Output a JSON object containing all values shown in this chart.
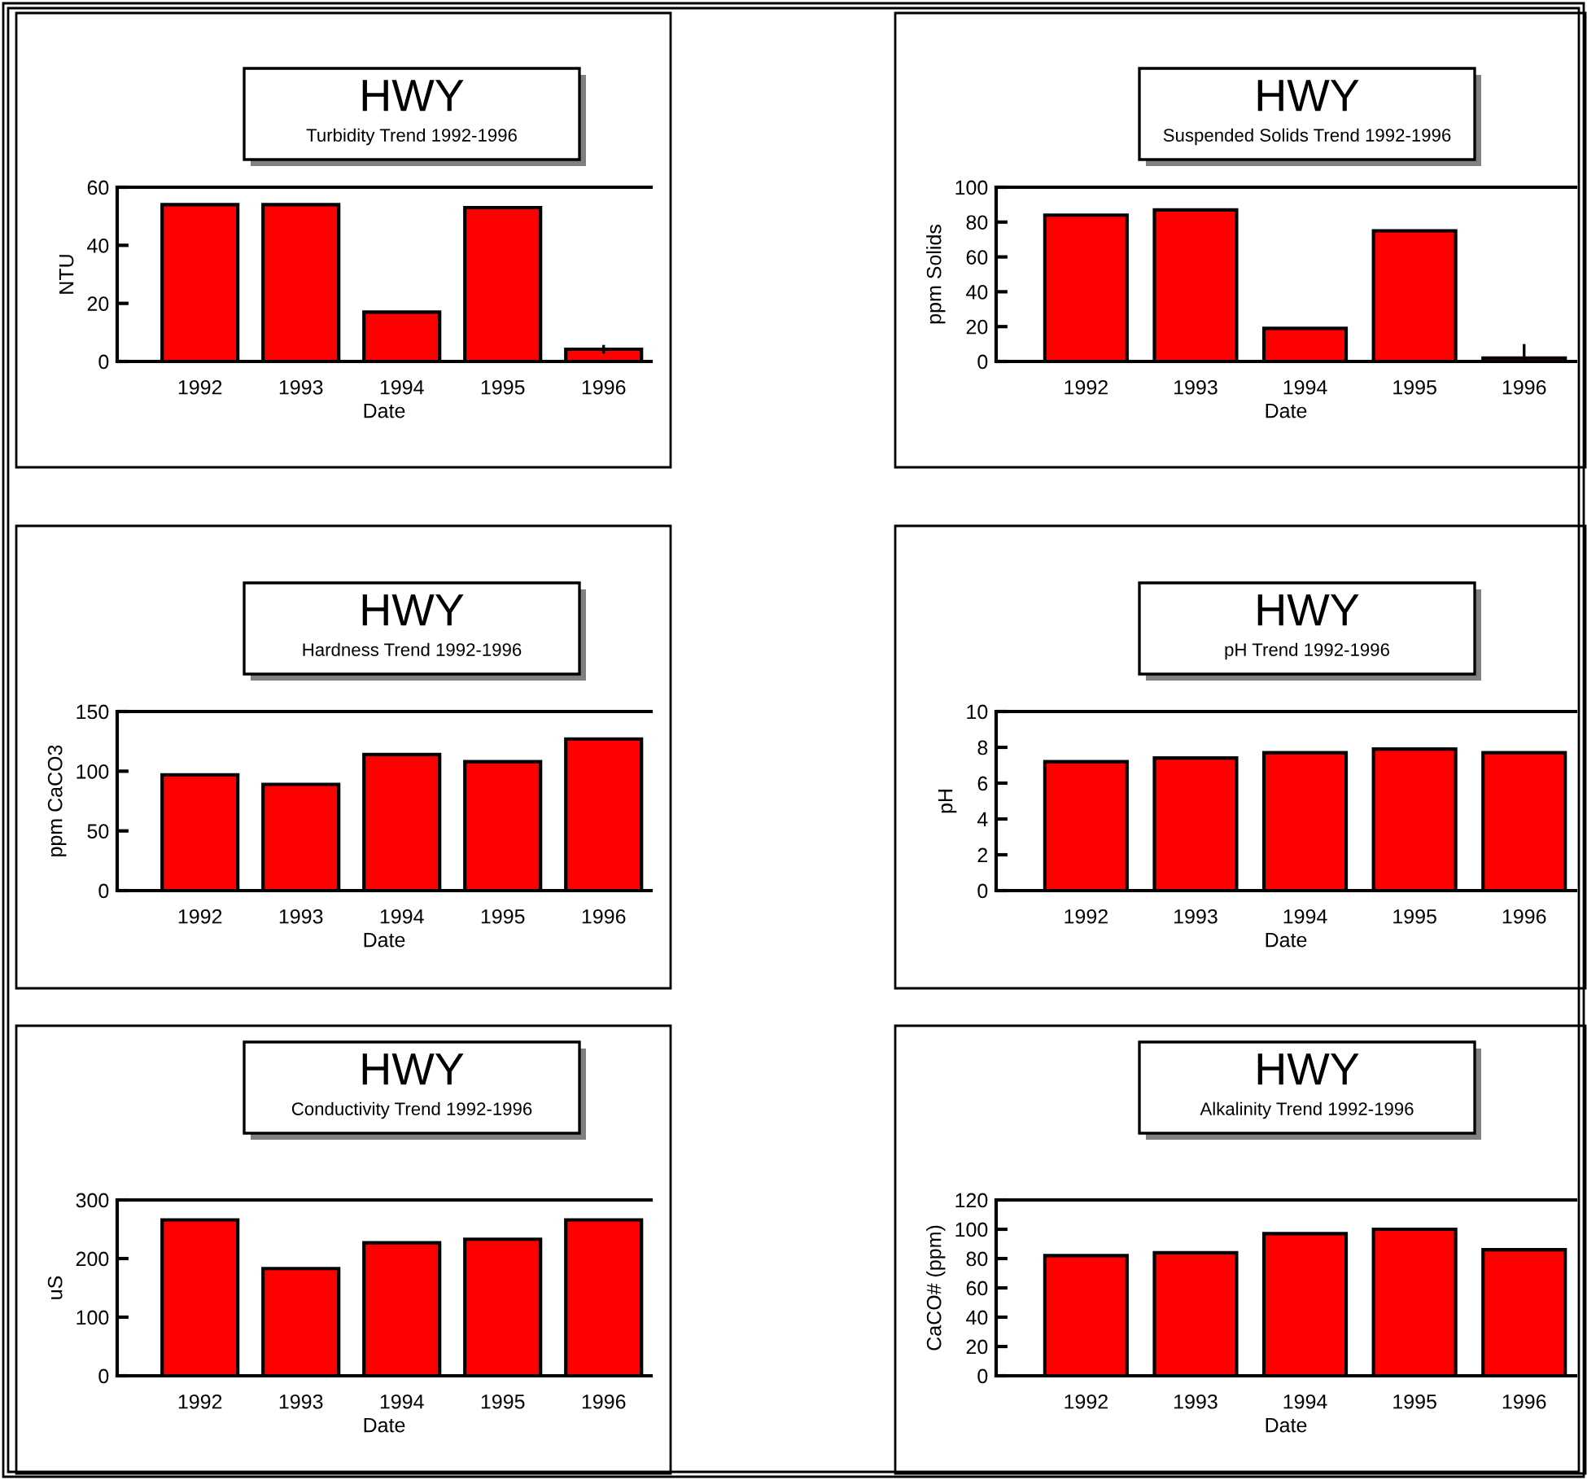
{
  "chart_data": [
    {
      "type": "bar",
      "title": "HWY",
      "subtitle": "Turbidity Trend 1992-1996",
      "xlabel": "Date",
      "ylabel": "NTU",
      "categories": [
        "1992",
        "1993",
        "1994",
        "1995",
        "1996"
      ],
      "values": [
        54,
        54,
        17,
        53,
        4.2
      ],
      "errors": [
        null,
        null,
        null,
        null,
        1.5
      ],
      "color": "#ff0000",
      "ylim": [
        0,
        60
      ],
      "yticks": [
        0,
        20,
        40,
        60
      ]
    },
    {
      "type": "bar",
      "title": "HWY",
      "subtitle": "Suspended Solids Trend 1992-1996",
      "xlabel": "Date",
      "ylabel": "ppm Solids",
      "categories": [
        "1992",
        "1993",
        "1994",
        "1995",
        "1996"
      ],
      "values": [
        84,
        87,
        19,
        75,
        2
      ],
      "errors": [
        null,
        null,
        null,
        null,
        8
      ],
      "color": "#ff0000",
      "ylim": [
        0,
        100
      ],
      "yticks": [
        0,
        20,
        40,
        60,
        80,
        100
      ]
    },
    {
      "type": "bar",
      "title": "HWY",
      "subtitle": "Hardness Trend 1992-1996",
      "xlabel": "Date",
      "ylabel": "ppm CaCO3",
      "categories": [
        "1992",
        "1993",
        "1994",
        "1995",
        "1996"
      ],
      "values": [
        97,
        89,
        114,
        108,
        127
      ],
      "color": "#ff0000",
      "ylim": [
        0,
        150
      ],
      "yticks": [
        0,
        50,
        100,
        150
      ]
    },
    {
      "type": "bar",
      "title": "HWY",
      "subtitle": "pH Trend 1992-1996",
      "xlabel": "Date",
      "ylabel": "pH",
      "categories": [
        "1992",
        "1993",
        "1994",
        "1995",
        "1996"
      ],
      "values": [
        7.2,
        7.4,
        7.7,
        7.9,
        7.7
      ],
      "color": "#ff0000",
      "ylim": [
        0,
        10
      ],
      "yticks": [
        0,
        2,
        4,
        6,
        8,
        10
      ]
    },
    {
      "type": "bar",
      "title": "HWY",
      "subtitle": "Conductivity Trend 1992-1996",
      "xlabel": "Date",
      "ylabel": "uS",
      "categories": [
        "1992",
        "1993",
        "1994",
        "1995",
        "1996"
      ],
      "values": [
        266,
        183,
        227,
        233,
        266
      ],
      "color": "#ff0000",
      "ylim": [
        0,
        300
      ],
      "yticks": [
        0,
        100,
        200,
        300
      ]
    },
    {
      "type": "bar",
      "title": "HWY",
      "subtitle": "Alkalinity Trend 1992-1996",
      "xlabel": "Date",
      "ylabel": "CaCO# (ppm)",
      "categories": [
        "1992",
        "1993",
        "1994",
        "1995",
        "1996"
      ],
      "values": [
        82,
        84,
        97,
        100,
        86
      ],
      "color": "#ff0000",
      "ylim": [
        0,
        120
      ],
      "yticks": [
        0,
        20,
        40,
        60,
        80,
        100,
        120
      ]
    }
  ]
}
